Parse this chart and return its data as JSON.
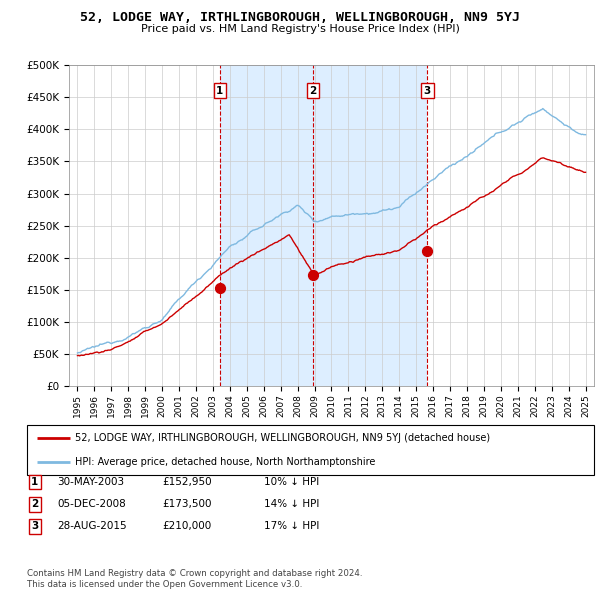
{
  "title": "52, LODGE WAY, IRTHLINGBOROUGH, WELLINGBOROUGH, NN9 5YJ",
  "subtitle": "Price paid vs. HM Land Registry's House Price Index (HPI)",
  "ylim": [
    0,
    500000
  ],
  "yticks": [
    0,
    50000,
    100000,
    150000,
    200000,
    250000,
    300000,
    350000,
    400000,
    450000,
    500000
  ],
  "hpi_color": "#7fb9e0",
  "price_color": "#cc0000",
  "vline_color": "#cc0000",
  "shade_color": "#ddeeff",
  "grid_color": "#cccccc",
  "transactions": [
    {
      "label": "1",
      "date": "30-MAY-2003",
      "price": 152950,
      "x_year": 2003.41,
      "hpi_pct": "10% ↓ HPI"
    },
    {
      "label": "2",
      "date": "05-DEC-2008",
      "price": 173500,
      "x_year": 2008.92,
      "hpi_pct": "14% ↓ HPI"
    },
    {
      "label": "3",
      "date": "28-AUG-2015",
      "price": 210000,
      "x_year": 2015.66,
      "hpi_pct": "17% ↓ HPI"
    }
  ],
  "legend_line1": "52, LODGE WAY, IRTHLINGBOROUGH, WELLINGBOROUGH, NN9 5YJ (detached house)",
  "legend_line2": "HPI: Average price, detached house, North Northamptonshire",
  "footnote": "Contains HM Land Registry data © Crown copyright and database right 2024.\nThis data is licensed under the Open Government Licence v3.0.",
  "xlim": [
    1994.5,
    2025.5
  ],
  "xtick_years": [
    1995,
    1996,
    1997,
    1998,
    1999,
    2000,
    2001,
    2002,
    2003,
    2004,
    2005,
    2006,
    2007,
    2008,
    2009,
    2010,
    2011,
    2012,
    2013,
    2014,
    2015,
    2016,
    2017,
    2018,
    2019,
    2020,
    2021,
    2022,
    2023,
    2024,
    2025
  ]
}
